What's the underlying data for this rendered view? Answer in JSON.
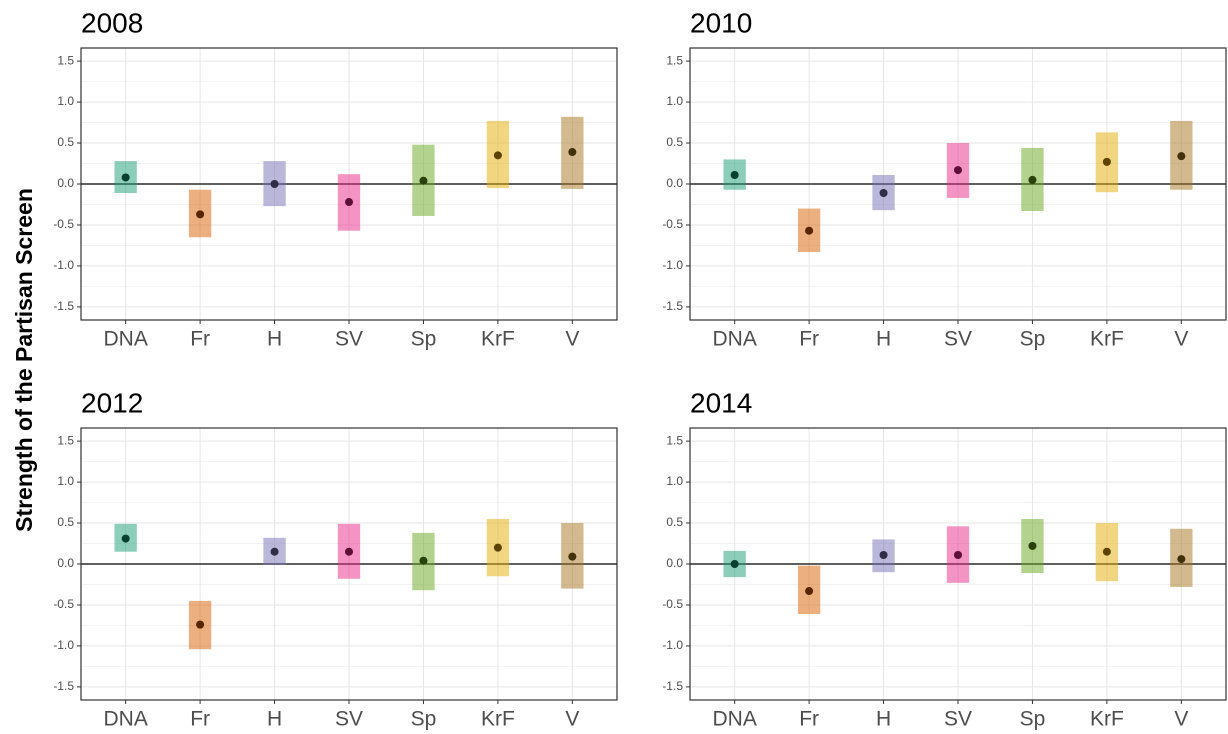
{
  "ylabel": "Strength of the Partisan Screen",
  "chart_data": [
    {
      "type": "range",
      "title": "2008",
      "categories": [
        "DNA",
        "Fr",
        "H",
        "SV",
        "Sp",
        "KrF",
        "V"
      ],
      "values": [
        0.08,
        -0.37,
        0,
        -0.22,
        0.04,
        0.35,
        0.39
      ],
      "lower": [
        -0.11,
        -0.65,
        -0.27,
        -0.57,
        -0.39,
        -0.05,
        -0.06
      ],
      "upper": [
        0.28,
        -0.07,
        0.28,
        0.12,
        0.48,
        0.77,
        0.82
      ],
      "colors": [
        "#1b9e77",
        "#d95f02",
        "#7570b3",
        "#e7298a",
        "#66a61e",
        "#e6ab02",
        "#a6761d"
      ],
      "ylim": [
        -1.66,
        1.66
      ],
      "yticks": [
        -1.5,
        {
          "value": -1,
          "label": "-1.0"
        },
        -0.5,
        {
          "value": 0,
          "label": "0.0"
        },
        0.5,
        {
          "value": 1,
          "label": "1.0"
        },
        1.5
      ],
      "hline": 0,
      "grid": true
    },
    {
      "type": "range",
      "title": "2010",
      "categories": [
        "DNA",
        "Fr",
        "H",
        "SV",
        "Sp",
        "KrF",
        "V"
      ],
      "values": [
        0.11,
        -0.57,
        -0.11,
        0.17,
        0.05,
        0.27,
        0.34
      ],
      "lower": [
        -0.07,
        -0.83,
        -0.32,
        -0.17,
        -0.33,
        -0.1,
        -0.07
      ],
      "upper": [
        0.3,
        -0.3,
        0.11,
        0.5,
        0.44,
        0.63,
        0.77
      ],
      "colors": [
        "#1b9e77",
        "#d95f02",
        "#7570b3",
        "#e7298a",
        "#66a61e",
        "#e6ab02",
        "#a6761d"
      ],
      "ylim": [
        -1.66,
        1.66
      ],
      "yticks": [
        -1.5,
        {
          "value": -1,
          "label": "-1.0"
        },
        -0.5,
        {
          "value": 0,
          "label": "0.0"
        },
        0.5,
        {
          "value": 1,
          "label": "1.0"
        },
        1.5
      ],
      "hline": 0,
      "grid": true
    },
    {
      "type": "range",
      "title": "2012",
      "categories": [
        "DNA",
        "Fr",
        "H",
        "SV",
        "Sp",
        "KrF",
        "V"
      ],
      "values": [
        0.31,
        -0.74,
        0.15,
        0.15,
        0.04,
        0.2,
        0.09
      ],
      "lower": [
        0.15,
        -1.04,
        -0.01,
        -0.18,
        -0.32,
        -0.15,
        -0.3
      ],
      "upper": [
        0.49,
        -0.45,
        0.32,
        0.49,
        0.38,
        0.55,
        0.5
      ],
      "colors": [
        "#1b9e77",
        "#d95f02",
        "#7570b3",
        "#e7298a",
        "#66a61e",
        "#e6ab02",
        "#a6761d"
      ],
      "ylim": [
        -1.66,
        1.66
      ],
      "yticks": [
        -1.5,
        {
          "value": -1,
          "label": "-1.0"
        },
        -0.5,
        {
          "value": 0,
          "label": "0.0"
        },
        0.5,
        {
          "value": 1,
          "label": "1.0"
        },
        1.5
      ],
      "hline": 0,
      "grid": true
    },
    {
      "type": "range",
      "title": "2014",
      "categories": [
        "DNA",
        "Fr",
        "H",
        "SV",
        "Sp",
        "KrF",
        "V"
      ],
      "values": [
        0,
        -0.33,
        0.11,
        0.11,
        0.22,
        0.15,
        0.06
      ],
      "lower": [
        -0.16,
        -0.61,
        -0.1,
        -0.23,
        -0.11,
        -0.21,
        -0.28
      ],
      "upper": [
        0.16,
        -0.02,
        0.3,
        0.46,
        0.55,
        0.5,
        0.43
      ],
      "colors": [
        "#1b9e77",
        "#d95f02",
        "#7570b3",
        "#e7298a",
        "#66a61e",
        "#e6ab02",
        "#a6761d"
      ],
      "ylim": [
        -1.66,
        1.66
      ],
      "yticks": [
        -1.5,
        {
          "value": -1,
          "label": "-1.0"
        },
        -0.5,
        {
          "value": 0,
          "label": "0.0"
        },
        0.5,
        {
          "value": 1,
          "label": "1.0"
        },
        1.5
      ],
      "hline": 0,
      "grid": true
    }
  ]
}
